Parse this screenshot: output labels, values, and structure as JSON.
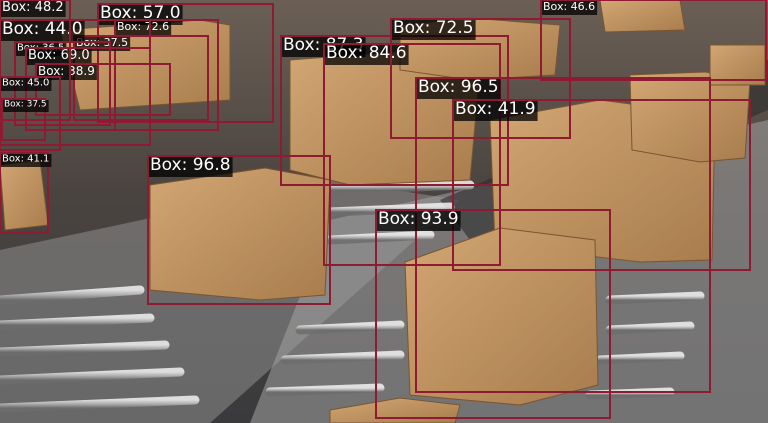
{
  "detections": [
    {
      "label": "Box: 57.0"
    },
    {
      "label": "Box: 72.6"
    },
    {
      "label": "Box: 37.5"
    },
    {
      "label": "Box: 36.5"
    },
    {
      "label": "Box: 69.0"
    },
    {
      "label": "Box: 38.9"
    },
    {
      "label": "Box: 45.0"
    },
    {
      "label": "Box: 37.5"
    },
    {
      "label": "Box: 44.0"
    },
    {
      "label": "Box: 48.2"
    },
    {
      "label": "Box: 41.1"
    },
    {
      "label": "Box: 96.8"
    },
    {
      "label": "Box: 87.3"
    },
    {
      "label": "Box: 84.6"
    },
    {
      "label": "Box: 72.5"
    },
    {
      "label": "Box: 46.6"
    },
    {
      "label": "Box: 96.5"
    },
    {
      "label": "Box: 41.9"
    },
    {
      "label": "Box: 93.9"
    }
  ]
}
